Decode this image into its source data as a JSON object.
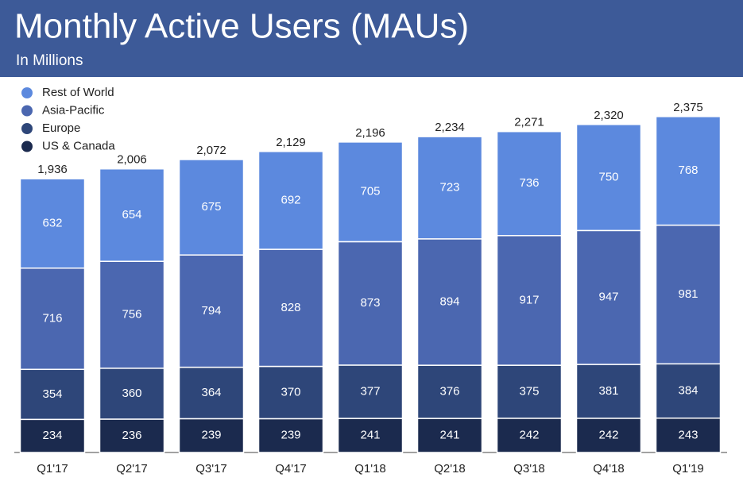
{
  "chart_data": {
    "type": "stacked_bar",
    "title": "Monthly Active Users (MAUs)",
    "subtitle": "In Millions",
    "categories": [
      "Q1'17",
      "Q2'17",
      "Q3'17",
      "Q4'17",
      "Q1'18",
      "Q2'18",
      "Q3'18",
      "Q4'18",
      "Q1'19"
    ],
    "series": [
      {
        "name": "US & Canada",
        "color": "#1b2a4e",
        "values": [
          234,
          236,
          239,
          239,
          241,
          241,
          242,
          242,
          243
        ]
      },
      {
        "name": "Europe",
        "color": "#2e4679",
        "values": [
          354,
          360,
          364,
          370,
          377,
          376,
          375,
          381,
          384
        ]
      },
      {
        "name": "Asia-Pacific",
        "color": "#4b67b0",
        "values": [
          716,
          756,
          794,
          828,
          873,
          894,
          917,
          947,
          981
        ]
      },
      {
        "name": "Rest of World",
        "color": "#5c89de",
        "values": [
          632,
          654,
          675,
          692,
          705,
          723,
          736,
          750,
          768
        ]
      }
    ],
    "totals": {
      "values": [
        1936,
        2006,
        2072,
        2129,
        2196,
        2234,
        2271,
        2320,
        2375
      ],
      "value_labels": [
        "1,936",
        "2,006",
        "2,072",
        "2,129",
        "2,196",
        "2,234",
        "2,271",
        "2,320",
        "2,375"
      ]
    },
    "legend": "top-left"
  }
}
